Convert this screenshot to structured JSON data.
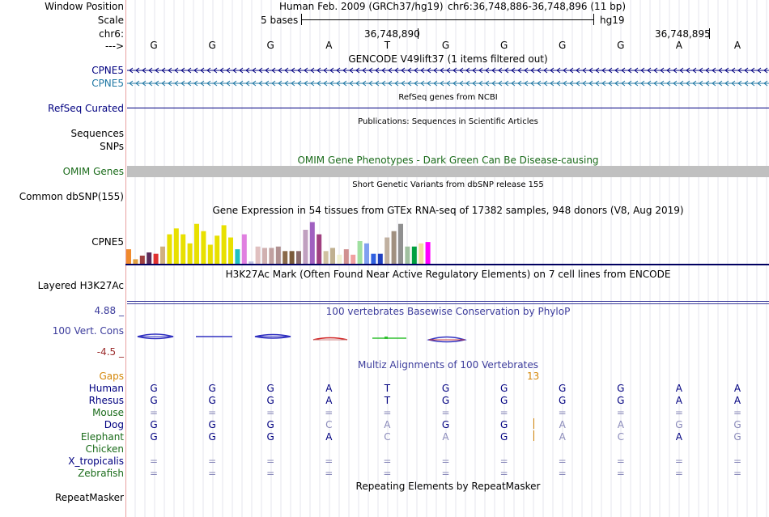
{
  "colors": {
    "navy": "#000080",
    "teal": "#1f77a4",
    "omim_green": "#1a6b1a",
    "gaps_orange": "#d4870a",
    "maroon": "#9b2b2b",
    "phylop_blue": "#3c3c9c",
    "faded": "#8a8aba",
    "omim_bar": "#c0c0c0"
  },
  "labels": {
    "window_position": "Window Position",
    "scale": "Scale",
    "chr": "chr6:",
    "arrow": "--->",
    "cpne5_1": "CPNE5",
    "cpne5_2": "CPNE5",
    "refseq": "RefSeq Curated",
    "sequences": "Sequences",
    "snps": "SNPs",
    "omim": "OMIM Genes",
    "dbsnp": "Common dbSNP(155)",
    "gtex_gene": "CPNE5",
    "h3k27ac": "Layered H3K27Ac",
    "cons_max": "4.88 _",
    "cons_label": "100 Vert. Cons",
    "cons_min": "-4.5 _",
    "repeatmasker": "RepeatMasker"
  },
  "header": {
    "assembly": "Human Feb. 2009 (GRCh37/hg19)",
    "position": "chr6:36,748,886-36,748,896 (11 bp)",
    "scale_text": "5 bases",
    "scale_db": "hg19",
    "coord1": "36,748,890",
    "coord2": "36,748,895"
  },
  "bases": [
    "G",
    "G",
    "G",
    "A",
    "T",
    "G",
    "G",
    "G",
    "G",
    "A",
    "A"
  ],
  "track_titles": {
    "gencode": "GENCODE V49lift37 (1 items filtered out)",
    "refseq": "RefSeq genes from NCBI",
    "publications": "Publications: Sequences in Scientific Articles",
    "omim": "OMIM Gene Phenotypes - Dark Green Can Be Disease-causing",
    "dbsnp": "Short Genetic Variants from dbSNP release 155",
    "gtex": "Gene Expression in 54 tissues from GTEx RNA-seq of 17382 samples, 948 donors (V8, Aug 2019)",
    "h3k27ac": "H3K27Ac Mark (Often Found Near Active Regulatory Elements) on 7 cell lines from ENCODE",
    "phylop": "100 vertebrates Basewise Conservation by PhyloP",
    "multiz": "Multiz Alignments of 100 Vertebrates",
    "repeatmasker": "Repeating Elements by RepeatMasker"
  },
  "gtex": {
    "bars": [
      {
        "v": 0.32,
        "c": "#f08a2c"
      },
      {
        "v": 0.1,
        "c": "#e0a040"
      },
      {
        "v": 0.18,
        "c": "#a04040"
      },
      {
        "v": 0.25,
        "c": "#5a2a5a"
      },
      {
        "v": 0.22,
        "c": "#e03030"
      },
      {
        "v": 0.38,
        "c": "#d0b080"
      },
      {
        "v": 0.65,
        "c": "#e8e000"
      },
      {
        "v": 0.78,
        "c": "#e8e000"
      },
      {
        "v": 0.65,
        "c": "#e8e000"
      },
      {
        "v": 0.45,
        "c": "#e8e000"
      },
      {
        "v": 0.88,
        "c": "#e8e000"
      },
      {
        "v": 0.72,
        "c": "#e8e000"
      },
      {
        "v": 0.42,
        "c": "#e8e000"
      },
      {
        "v": 0.62,
        "c": "#e8e000"
      },
      {
        "v": 0.85,
        "c": "#e8e000"
      },
      {
        "v": 0.58,
        "c": "#e8e000"
      },
      {
        "v": 0.32,
        "c": "#20c0c0"
      },
      {
        "v": 0.65,
        "c": "#e080e0"
      },
      {
        "v": 0.05,
        "c": "#c0c0e0"
      },
      {
        "v": 0.38,
        "c": "#e0c0c0"
      },
      {
        "v": 0.35,
        "c": "#d0b0b0"
      },
      {
        "v": 0.35,
        "c": "#c0a0a0"
      },
      {
        "v": 0.38,
        "c": "#b09090"
      },
      {
        "v": 0.28,
        "c": "#8a6a4a"
      },
      {
        "v": 0.28,
        "c": "#7a5a3a"
      },
      {
        "v": 0.28,
        "c": "#8a6a6a"
      },
      {
        "v": 0.75,
        "c": "#c0a0c0"
      },
      {
        "v": 0.92,
        "c": "#a060c0"
      },
      {
        "v": 0.65,
        "c": "#a04080"
      },
      {
        "v": 0.28,
        "c": "#d0c0a0"
      },
      {
        "v": 0.35,
        "c": "#c0b090"
      },
      {
        "v": 0.2,
        "c": "#f0f0d0"
      },
      {
        "v": 0.32,
        "c": "#d09090"
      },
      {
        "v": 0.2,
        "c": "#f0a0a0"
      },
      {
        "v": 0.5,
        "c": "#a0e0a0"
      },
      {
        "v": 0.45,
        "c": "#80a0f0"
      },
      {
        "v": 0.22,
        "c": "#3060e0"
      },
      {
        "v": 0.22,
        "c": "#2040c0"
      },
      {
        "v": 0.58,
        "c": "#c0b0a0"
      },
      {
        "v": 0.72,
        "c": "#a09080"
      },
      {
        "v": 0.88,
        "c": "#909090"
      },
      {
        "v": 0.38,
        "c": "#a0c0a0"
      },
      {
        "v": 0.38,
        "c": "#00a040"
      },
      {
        "v": 0.45,
        "c": "#f0e0a0"
      },
      {
        "v": 0.48,
        "c": "#ff00ff"
      }
    ]
  },
  "multiz": {
    "gaps_label": "Gaps",
    "gap_count": "13",
    "species": [
      {
        "name": "Human",
        "color": "#000080",
        "bases": [
          "G",
          "G",
          "G",
          "A",
          "T",
          "G",
          "G",
          "G",
          "G",
          "A",
          "A"
        ],
        "faded": [
          0,
          0,
          0,
          0,
          0,
          0,
          0,
          0,
          0,
          0,
          0
        ]
      },
      {
        "name": "Rhesus",
        "color": "#000080",
        "bases": [
          "G",
          "G",
          "G",
          "A",
          "T",
          "G",
          "G",
          "G",
          "G",
          "A",
          "A"
        ],
        "faded": [
          0,
          0,
          0,
          0,
          0,
          0,
          0,
          0,
          0,
          0,
          0
        ]
      },
      {
        "name": "Mouse",
        "color": "#1a6b1a",
        "bases": [
          "=",
          "=",
          "=",
          "=",
          "=",
          "=",
          "=",
          "=",
          "=",
          "=",
          "="
        ],
        "faded": [
          1,
          1,
          1,
          1,
          1,
          1,
          1,
          1,
          1,
          1,
          1
        ]
      },
      {
        "name": "Dog",
        "color": "#000080",
        "bases": [
          "G",
          "G",
          "G",
          "C",
          "A",
          "G",
          "G",
          "A",
          "A",
          "G",
          "G"
        ],
        "faded": [
          0,
          0,
          0,
          1,
          1,
          0,
          0,
          1,
          1,
          1,
          1
        ]
      },
      {
        "name": "Elephant",
        "color": "#1a6b1a",
        "bases": [
          "G",
          "G",
          "G",
          "A",
          "C",
          "A",
          "G",
          "A",
          "C",
          "A",
          "G"
        ],
        "faded": [
          0,
          0,
          0,
          0,
          1,
          1,
          0,
          1,
          1,
          0,
          1
        ]
      },
      {
        "name": "Chicken",
        "color": "#1a6b1a",
        "bases": [
          "",
          "",
          "",
          "",
          "",
          "",
          "",
          "",
          "",
          "",
          ""
        ],
        "faded": [
          0,
          0,
          0,
          0,
          0,
          0,
          0,
          0,
          0,
          0,
          0
        ]
      },
      {
        "name": "X_tropicalis",
        "color": "#000080",
        "bases": [
          "=",
          "=",
          "=",
          "=",
          "=",
          "=",
          "=",
          "=",
          "=",
          "=",
          "="
        ],
        "faded": [
          1,
          1,
          1,
          1,
          1,
          1,
          1,
          1,
          1,
          1,
          1
        ]
      },
      {
        "name": "Zebrafish",
        "color": "#1a6b1a",
        "bases": [
          "=",
          "=",
          "=",
          "=",
          "=",
          "=",
          "=",
          "=",
          "=",
          "=",
          "="
        ],
        "faded": [
          1,
          1,
          1,
          1,
          1,
          1,
          1,
          1,
          1,
          1,
          1
        ]
      }
    ]
  }
}
